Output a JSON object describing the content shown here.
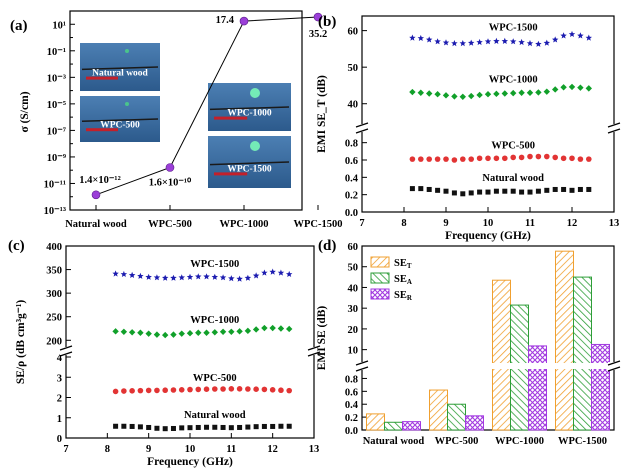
{
  "chart_data": [
    {
      "panel": "(a)",
      "type": "scatter",
      "categories": [
        "Natural wood",
        "WPC-500",
        "WPC-1000",
        "WPC-1500"
      ],
      "values": [
        1.4e-12,
        1.6e-10,
        17.4,
        35.2
      ],
      "value_labels": [
        "1.4×10⁻¹²",
        "1.6×10⁻¹⁰",
        "17.4",
        "35.2"
      ],
      "ylabel": "σ (S/cm)",
      "yscale": "log",
      "yticks": [
        "10⁻¹³",
        "10⁻¹¹",
        "10⁻⁹",
        "10⁻⁷",
        "10⁻⁵",
        "10⁻³",
        "10⁻¹",
        "10¹"
      ],
      "photo_labels": [
        "Natural wood",
        "WPC-500",
        "WPC-1000",
        "WPC-1500"
      ],
      "color": "#9b3fd8"
    },
    {
      "panel": "(b)",
      "type": "line",
      "xlabel": "Frequency (GHz)",
      "ylabel": "EMI SE_T (dB)",
      "xlim": [
        7,
        13
      ],
      "xticks": [
        "7",
        "8",
        "9",
        "10",
        "11",
        "12",
        "13"
      ],
      "yticks_upper": [
        "40",
        "50",
        "60"
      ],
      "yticks_lower": [
        "0.0",
        "0.2",
        "0.4",
        "0.6",
        "0.8"
      ],
      "axis_break": true,
      "x": [
        8.2,
        8.4,
        8.6,
        8.8,
        9.0,
        9.2,
        9.4,
        9.6,
        9.8,
        10.0,
        10.2,
        10.4,
        10.6,
        10.8,
        11.0,
        11.2,
        11.4,
        11.6,
        11.8,
        12.0,
        12.2,
        12.4
      ],
      "series": [
        {
          "name": "WPC-1500",
          "color": "#1c1cb0",
          "marker": "star",
          "values": [
            58.0,
            57.9,
            57.5,
            57.0,
            56.7,
            56.5,
            56.5,
            56.6,
            56.8,
            57.0,
            57.1,
            57.1,
            57.0,
            56.8,
            56.5,
            56.3,
            56.6,
            57.5,
            58.6,
            59.0,
            58.6,
            58.0
          ]
        },
        {
          "name": "WPC-1000",
          "color": "#11a02a",
          "marker": "diamond",
          "values": [
            43.2,
            43.0,
            42.8,
            42.6,
            42.3,
            42.0,
            41.9,
            42.1,
            42.4,
            42.6,
            42.7,
            42.8,
            42.9,
            43.0,
            43.0,
            43.1,
            43.3,
            43.9,
            44.5,
            44.6,
            44.4,
            44.2
          ]
        },
        {
          "name": "WPC-500",
          "color": "#e23434",
          "marker": "circle",
          "values": [
            0.61,
            0.61,
            0.61,
            0.61,
            0.61,
            0.6,
            0.61,
            0.61,
            0.62,
            0.62,
            0.62,
            0.62,
            0.63,
            0.63,
            0.64,
            0.64,
            0.64,
            0.63,
            0.62,
            0.62,
            0.61,
            0.61
          ]
        },
        {
          "name": "Natural wood",
          "color": "#111111",
          "marker": "square",
          "values": [
            0.27,
            0.27,
            0.26,
            0.25,
            0.24,
            0.22,
            0.21,
            0.22,
            0.23,
            0.23,
            0.24,
            0.24,
            0.24,
            0.23,
            0.23,
            0.24,
            0.25,
            0.26,
            0.26,
            0.25,
            0.26,
            0.26
          ]
        }
      ]
    },
    {
      "panel": "(c)",
      "type": "line",
      "xlabel": "Frequency (GHz)",
      "ylabel": "SE/ρ (dB cm³g⁻¹)",
      "xlim": [
        7,
        13
      ],
      "xticks": [
        "7",
        "8",
        "9",
        "10",
        "11",
        "12",
        "13"
      ],
      "yticks_upper": [
        "200",
        "250",
        "300",
        "350",
        "400"
      ],
      "yticks_lower": [
        "0",
        "1",
        "2",
        "3",
        "4"
      ],
      "axis_break": true,
      "x": [
        8.2,
        8.4,
        8.6,
        8.8,
        9.0,
        9.2,
        9.4,
        9.6,
        9.8,
        10.0,
        10.2,
        10.4,
        10.6,
        10.8,
        11.0,
        11.2,
        11.4,
        11.6,
        11.8,
        12.0,
        12.2,
        12.4
      ],
      "series": [
        {
          "name": "WPC-1500",
          "color": "#1c1cb0",
          "marker": "star",
          "values": [
            341,
            340,
            338,
            336,
            334,
            333,
            332,
            332,
            333,
            334,
            335,
            335,
            334,
            333,
            331,
            330,
            332,
            337,
            343,
            345,
            343,
            340
          ]
        },
        {
          "name": "WPC-1000",
          "color": "#11a02a",
          "marker": "diamond",
          "values": [
            219,
            218,
            217,
            216,
            214,
            212,
            211,
            212,
            214,
            215,
            216,
            216,
            217,
            218,
            218,
            219,
            220,
            223,
            226,
            226,
            225,
            224
          ]
        },
        {
          "name": "WPC-500",
          "color": "#e23434",
          "marker": "circle",
          "values": [
            2.3,
            2.32,
            2.33,
            2.34,
            2.35,
            2.35,
            2.36,
            2.37,
            2.38,
            2.39,
            2.4,
            2.41,
            2.42,
            2.42,
            2.43,
            2.43,
            2.42,
            2.41,
            2.4,
            2.38,
            2.36,
            2.34
          ]
        },
        {
          "name": "Natural wood",
          "color": "#111111",
          "marker": "square",
          "values": [
            0.58,
            0.58,
            0.57,
            0.55,
            0.52,
            0.48,
            0.46,
            0.47,
            0.5,
            0.51,
            0.52,
            0.53,
            0.53,
            0.52,
            0.51,
            0.52,
            0.54,
            0.56,
            0.57,
            0.57,
            0.58,
            0.58
          ]
        }
      ]
    },
    {
      "panel": "(d)",
      "type": "bar",
      "ylabel": "EMI SE (dB)",
      "categories": [
        "Natural wood",
        "WPC-500",
        "WPC-1000",
        "WPC-1500"
      ],
      "yticks_upper": [
        "10",
        "20",
        "30",
        "40",
        "50",
        "60"
      ],
      "yticks_lower": [
        "0.0",
        "0.2",
        "0.4",
        "0.6",
        "0.8"
      ],
      "axis_break": true,
      "series": [
        {
          "name": "SE_T",
          "color": "#f0a030",
          "values": [
            0.25,
            0.62,
            43.5,
            57.5
          ]
        },
        {
          "name": "SE_A",
          "color": "#2e9e38",
          "values": [
            0.12,
            0.4,
            31.5,
            45.0
          ]
        },
        {
          "name": "SE_R",
          "color": "#a23ae0",
          "values": [
            0.13,
            0.22,
            11.8,
            12.5
          ]
        }
      ],
      "legend": [
        "SE",
        "SE",
        "SE"
      ],
      "legend_sub": [
        "T",
        "A",
        "R"
      ]
    }
  ]
}
